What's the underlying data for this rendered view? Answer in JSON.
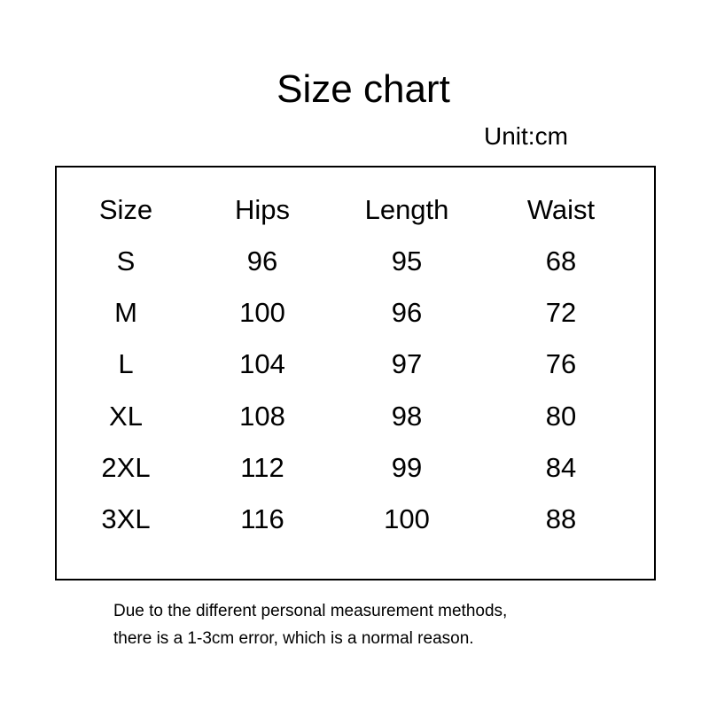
{
  "title": "Size chart",
  "unit": "Unit:cm",
  "headers": [
    "Size",
    "Hips",
    "Length",
    "Waist"
  ],
  "rows": [
    [
      "S",
      "96",
      "95",
      "68"
    ],
    [
      "M",
      "100",
      "96",
      "72"
    ],
    [
      "L",
      "104",
      "97",
      "76"
    ],
    [
      "XL",
      "108",
      "98",
      "80"
    ],
    [
      "2XL",
      "112",
      "99",
      "84"
    ],
    [
      "3XL",
      "116",
      "100",
      "88"
    ]
  ],
  "note": [
    "Due to the different personal measurement methods,",
    "there is a 1-3cm error, which is a normal reason."
  ]
}
